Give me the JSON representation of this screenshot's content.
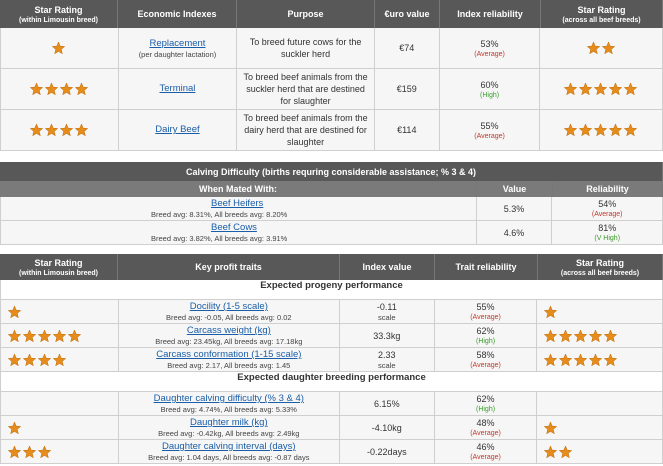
{
  "table1": {
    "headers": [
      {
        "title": "Star Rating",
        "subtitle": "(within Limousin breed)"
      },
      {
        "title": "Economic Indexes"
      },
      {
        "title": "Purpose"
      },
      {
        "title": "€uro value"
      },
      {
        "title": "Index reliability"
      },
      {
        "title": "Star Rating",
        "subtitle": "(across all beef breeds)"
      }
    ],
    "rows": [
      {
        "stars_within": 1,
        "index": "Replacement",
        "note": "(per daughter lactation)",
        "purpose": "To breed future cows for the suckler herd",
        "value": "€74",
        "reliability": "53%",
        "level": "(Average)",
        "stars_across": 2
      },
      {
        "stars_within": 4,
        "index": "Terminal",
        "purpose": "To breed beef animals from the suckler herd that are destined for slaughter",
        "value": "€159",
        "reliability": "60%",
        "level": "(High)",
        "stars_across": 5
      },
      {
        "stars_within": 4,
        "index": "Dairy Beef",
        "purpose": "To breed beef animals from the dairy herd that are destined for slaughter",
        "value": "€114",
        "reliability": "55%",
        "level": "(Average)",
        "stars_across": 5
      }
    ]
  },
  "table2": {
    "title": "Calving Difficulty (births requring considerable assistance; % 3 & 4)",
    "headers": [
      "When Mated With:",
      "Value",
      "Reliability"
    ],
    "rows": [
      {
        "name": "Beef Heifers",
        "avg": "Breed avg: 8.31%, All breeds avg: 8.20%",
        "value": "5.3%",
        "reliability": "54%",
        "level": "(Average)"
      },
      {
        "name": "Beef Cows",
        "avg": "Breed avg: 3.82%, All breeds avg: 3.91%",
        "value": "4.6%",
        "reliability": "81%",
        "level": "(V High)"
      }
    ]
  },
  "table3": {
    "headers": [
      {
        "title": "Star Rating",
        "subtitle": "(within Limousin breed)"
      },
      {
        "title": "Key profit traits"
      },
      {
        "title": "Index value"
      },
      {
        "title": "Trait reliability"
      },
      {
        "title": "Star Rating",
        "subtitle": "(across all beef breeds)"
      }
    ],
    "sections": [
      {
        "title": "Expected progeny performance",
        "rows": [
          {
            "stars_within": 1,
            "trait": "Docility (1-5 scale)",
            "avg": "Breed avg: -0.05, All breeds avg: 0.02",
            "value": "-0.11",
            "unit": "scale",
            "reliability": "55%",
            "level": "(Average)",
            "stars_across": 1
          },
          {
            "stars_within": 5,
            "trait": "Carcass weight (kg)",
            "avg": "Breed avg: 23.45kg, All breeds avg: 17.18kg",
            "value": "33.3kg",
            "reliability": "62%",
            "level": "(High)",
            "stars_across": 5
          },
          {
            "stars_within": 4,
            "trait": "Carcass conformation (1-15 scale)",
            "avg": "Breed avg: 2.17, All breeds avg: 1.45",
            "value": "2.33",
            "unit": "scale",
            "reliability": "58%",
            "level": "(Average)",
            "stars_across": 5
          }
        ]
      },
      {
        "title": "Expected daughter breeding performance",
        "rows": [
          {
            "stars_within": 0,
            "trait": "Daughter calving difficulty (% 3 & 4)",
            "avg": "Breed avg: 4.74%, All breeds avg: 5.33%",
            "value": "6.15%",
            "reliability": "62%",
            "level": "(High)",
            "stars_across": 0
          },
          {
            "stars_within": 1,
            "trait": "Daughter milk (kg)",
            "avg": "Breed avg: -0.42kg, All breeds avg: 2.49kg",
            "value": "-4.10kg",
            "reliability": "48%",
            "level": "(Average)",
            "stars_across": 1
          },
          {
            "stars_within": 3,
            "trait": "Daughter calving interval (days)",
            "avg": "Breed avg: 1.04 days, All breeds avg: -0.87 days",
            "value": "-0.22days",
            "reliability": "46%",
            "level": "(Average)",
            "stars_across": 2
          }
        ]
      }
    ]
  }
}
